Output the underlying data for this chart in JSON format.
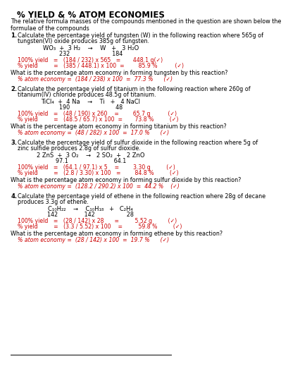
{
  "title": "% YIELD & % ATOM ECONOMIES",
  "intro": "The relative formula masses of the compounds mentioned in the question are shown below the\nformulae of the compounds",
  "background": "#ffffff",
  "text_color": "#000000",
  "red_color": "#cc0000",
  "questions": [
    {
      "num": "1.",
      "text": "Calculate the percentage yield of tungsten (W) in the following reaction where 565g of\ntungsten(VI) oxide produces 385g of tungsten.",
      "equation": "WO₃  +  3 H₂    →    W   +   3 H₂O",
      "masses": "232                        184",
      "calc1": "100% yield   =   (184 / 232) x 565   =       448.1 g(✓)",
      "calc2": "% yield         =   (385 / 448.1) x 100  =        85.9 %          (✓)",
      "atom_q": "What is the percentage atom economy in forming tungsten by this reaction?",
      "atom_eq": "% atom economy =  (184 / 238) x 100  =  77.3 %      (✓)"
    },
    {
      "num": "2.",
      "text": "Calculate the percentage yield of titanium in the following reaction where 260g of\ntitanium(IV) chloride produces 48.5g of titanium.",
      "equation": "TiCl₄  +  4 Na    →    Ti   +   4 NaCl",
      "masses": "190                          48",
      "calc1": "100% yield   =   (48 / 190) x 260    =        65.7 g          (✓)",
      "calc2": "% yield         =   (48.5 / 65.7) x 100  =       73.8 %         (✓)",
      "atom_q": "What is the percentage atom economy in forming titanium by this reaction?",
      "atom_eq": "% atom economy =  (48 / 282) x 100  =  17.0 %      (✓)"
    },
    {
      "num": "3.",
      "text": "Calculate the percentage yield of sulfur dioxide in the following reaction where 5g of\nzinc sulfide produces 2.8g of sulfur dioxide.",
      "equation": "2 ZnS  +  3 O₂    →   2 SO₂  +   2 ZnO",
      "masses": "97.1                          64.1",
      "calc1": "100% yield   =   (64.1 / 97.1) x 5    =        3.30 g         (✓)",
      "calc2": "% yield         =   (2.8 / 3.30) x 100   =        84.8 %         (✓)",
      "atom_q": "What is the percentage atom economy in forming sulfur dioxide by this reaction?",
      "atom_eq": "% atom economy =  (128.2 / 290.2) x 100  =  44.2 %    (✓)"
    },
    {
      "num": "4.",
      "text": "Calculate the percentage yield of ethene in the following reaction where 28g of decane\nproduces 3.3g of ethene.",
      "equation": "C₁₀H₂₂    →    C₁₀H₁₈   +   C₂H₄",
      "masses": "142               142                  28",
      "calc1": "100% yield   =   (28 / 142) x 28      =         5.52 g         (✓)",
      "calc2": "% yield         =   (3.3 / 5.52) x 100    =         59.8 %         (✓)",
      "atom_q": "What is the percentage atom economy in forming ethene by this reaction?",
      "atom_eq": "% atom economy =  (28 / 142) x 100  =  19.7 %      (✓)"
    }
  ]
}
